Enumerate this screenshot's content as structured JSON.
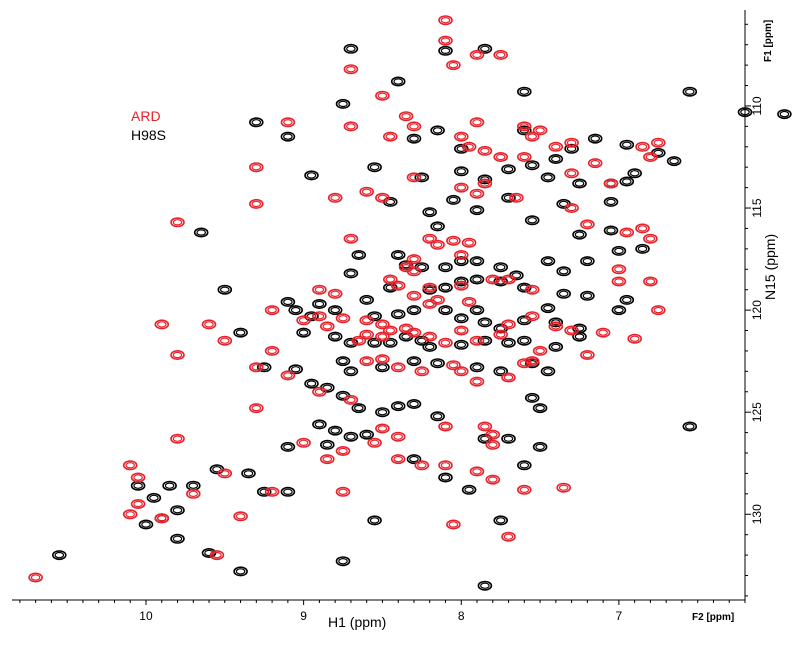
{
  "chart_data": {
    "type": "scatter",
    "subtype": "2D NMR HSQC contour overlay",
    "xlabel": "H1 (ppm)",
    "ylabel": "N15 (ppm)",
    "x_dim_label": "F2 [ppm]",
    "y_dim_label": "F1 [ppm]",
    "xlim": [
      10.85,
      6.2
    ],
    "ylim": [
      105.3,
      134.2
    ],
    "x_ticks": [
      10,
      9,
      8,
      7
    ],
    "y_ticks": [
      110,
      115,
      120,
      125,
      130
    ],
    "grid": false,
    "legend_position": "top-left",
    "series": [
      {
        "name": "ARD",
        "color": "#e8202a",
        "points": [
          [
            8.1,
            105.8
          ],
          [
            8.1,
            106.8
          ],
          [
            7.9,
            107.5
          ],
          [
            7.75,
            107.5
          ],
          [
            8.7,
            108.2
          ],
          [
            8.05,
            108.0
          ],
          [
            8.5,
            109.5
          ],
          [
            8.35,
            110.5
          ],
          [
            8.3,
            111.0
          ],
          [
            9.1,
            110.8
          ],
          [
            8.7,
            111.0
          ],
          [
            8.45,
            111.5
          ],
          [
            7.9,
            110.8
          ],
          [
            8.0,
            111.5
          ],
          [
            7.95,
            112.0
          ],
          [
            7.85,
            112.2
          ],
          [
            7.75,
            112.5
          ],
          [
            7.6,
            112.5
          ],
          [
            7.4,
            112.0
          ],
          [
            7.3,
            111.8
          ],
          [
            7.55,
            111.5
          ],
          [
            7.15,
            112.8
          ],
          [
            6.85,
            112.0
          ],
          [
            6.75,
            111.8
          ],
          [
            6.8,
            112.5
          ],
          [
            7.5,
            111.2
          ],
          [
            7.6,
            111.0
          ],
          [
            7.3,
            113.3
          ],
          [
            7.05,
            113.8
          ],
          [
            9.3,
            113.0
          ],
          [
            8.8,
            114.5
          ],
          [
            8.6,
            114.2
          ],
          [
            8.5,
            114.5
          ],
          [
            8.3,
            113.5
          ],
          [
            8.0,
            114.0
          ],
          [
            7.9,
            114.3
          ],
          [
            7.85,
            113.8
          ],
          [
            7.65,
            114.5
          ],
          [
            9.3,
            114.8
          ],
          [
            7.3,
            115.0
          ],
          [
            9.8,
            115.7
          ],
          [
            7.2,
            115.8
          ],
          [
            6.95,
            116.2
          ],
          [
            6.85,
            116.0
          ],
          [
            6.8,
            116.5
          ],
          [
            8.7,
            116.5
          ],
          [
            8.2,
            116.5
          ],
          [
            8.15,
            116.8
          ],
          [
            7.95,
            116.7
          ],
          [
            8.05,
            116.6
          ],
          [
            8.3,
            117.5
          ],
          [
            8.0,
            117.3
          ],
          [
            8.35,
            117.9
          ],
          [
            8.3,
            118.1
          ],
          [
            8.45,
            118.5
          ],
          [
            8.4,
            118.8
          ],
          [
            8.2,
            118.9
          ],
          [
            8.0,
            118.8
          ],
          [
            8.9,
            119.0
          ],
          [
            8.8,
            119.2
          ],
          [
            8.3,
            119.3
          ],
          [
            8.2,
            119.7
          ],
          [
            8.15,
            119.5
          ],
          [
            7.95,
            119.6
          ],
          [
            7.8,
            118.5
          ],
          [
            7.7,
            118.5
          ],
          [
            7.0,
            118.0
          ],
          [
            7.0,
            118.6
          ],
          [
            6.8,
            118.6
          ],
          [
            7.55,
            119.0
          ],
          [
            9.2,
            120.0
          ],
          [
            8.9,
            120.3
          ],
          [
            9.0,
            120.5
          ],
          [
            8.75,
            120.4
          ],
          [
            8.85,
            120.8
          ],
          [
            8.6,
            120.5
          ],
          [
            8.5,
            120.7
          ],
          [
            8.45,
            121.0
          ],
          [
            8.3,
            121.1
          ],
          [
            8.35,
            120.9
          ],
          [
            8.6,
            121.2
          ],
          [
            8.65,
            121.5
          ],
          [
            8.5,
            121.3
          ],
          [
            8.2,
            121.3
          ],
          [
            8.1,
            121.6
          ],
          [
            8.0,
            121.0
          ],
          [
            7.9,
            121.5
          ],
          [
            7.75,
            121.2
          ],
          [
            7.7,
            120.7
          ],
          [
            7.55,
            120.3
          ],
          [
            7.4,
            120.8
          ],
          [
            7.3,
            121.0
          ],
          [
            7.1,
            121.1
          ],
          [
            6.9,
            121.4
          ],
          [
            6.75,
            120.0
          ],
          [
            9.5,
            121.5
          ],
          [
            9.6,
            120.7
          ],
          [
            9.2,
            122.0
          ],
          [
            9.9,
            120.7
          ],
          [
            9.8,
            122.2
          ],
          [
            9.3,
            122.8
          ],
          [
            9.1,
            123.2
          ],
          [
            8.6,
            122.5
          ],
          [
            8.5,
            122.4
          ],
          [
            8.4,
            122.8
          ],
          [
            8.25,
            123.0
          ],
          [
            8.05,
            122.7
          ],
          [
            8.0,
            123.0
          ],
          [
            7.9,
            123.5
          ],
          [
            7.7,
            123.3
          ],
          [
            7.6,
            122.6
          ],
          [
            7.5,
            122.0
          ],
          [
            7.55,
            122.5
          ],
          [
            7.2,
            122.2
          ],
          [
            8.9,
            124.0
          ],
          [
            8.7,
            124.4
          ],
          [
            9.3,
            124.8
          ],
          [
            8.5,
            125.8
          ],
          [
            8.4,
            126.2
          ],
          [
            8.1,
            125.7
          ],
          [
            7.85,
            125.7
          ],
          [
            7.8,
            126.1
          ],
          [
            7.8,
            126.6
          ],
          [
            8.55,
            126.5
          ],
          [
            8.75,
            126.9
          ],
          [
            8.85,
            127.3
          ],
          [
            9.0,
            126.5
          ],
          [
            9.8,
            126.3
          ],
          [
            8.4,
            127.3
          ],
          [
            8.25,
            127.6
          ],
          [
            8.1,
            127.6
          ],
          [
            7.9,
            127.9
          ],
          [
            7.8,
            128.3
          ],
          [
            9.5,
            128.0
          ],
          [
            10.1,
            127.6
          ],
          [
            10.05,
            128.2
          ],
          [
            10.05,
            129.5
          ],
          [
            10.1,
            130.0
          ],
          [
            9.9,
            130.2
          ],
          [
            9.7,
            129.0
          ],
          [
            9.2,
            128.9
          ],
          [
            8.75,
            128.9
          ],
          [
            7.35,
            128.7
          ],
          [
            7.6,
            128.8
          ],
          [
            9.4,
            130.1
          ],
          [
            9.55,
            132.0
          ],
          [
            8.05,
            130.5
          ],
          [
            7.7,
            131.1
          ],
          [
            10.7,
            133.1
          ]
        ]
      },
      {
        "name": "H98S",
        "color": "#000000",
        "points": [
          [
            8.7,
            107.2
          ],
          [
            8.1,
            107.3
          ],
          [
            7.85,
            107.2
          ],
          [
            8.4,
            108.8
          ],
          [
            7.6,
            109.3
          ],
          [
            8.75,
            109.9
          ],
          [
            6.55,
            109.3
          ],
          [
            6.2,
            110.3
          ],
          [
            5.95,
            110.4
          ],
          [
            9.3,
            110.8
          ],
          [
            9.1,
            111.5
          ],
          [
            8.3,
            111.6
          ],
          [
            8.15,
            111.2
          ],
          [
            8.0,
            112.1
          ],
          [
            7.6,
            111.2
          ],
          [
            7.4,
            112.6
          ],
          [
            7.3,
            112.1
          ],
          [
            7.15,
            111.6
          ],
          [
            6.95,
            111.9
          ],
          [
            6.75,
            112.3
          ],
          [
            6.65,
            112.7
          ],
          [
            6.9,
            113.3
          ],
          [
            6.95,
            113.7
          ],
          [
            7.05,
            113.8
          ],
          [
            8.95,
            113.4
          ],
          [
            8.55,
            113.0
          ],
          [
            8.25,
            113.5
          ],
          [
            8.0,
            113.2
          ],
          [
            7.85,
            113.6
          ],
          [
            7.7,
            113.1
          ],
          [
            7.55,
            112.9
          ],
          [
            7.45,
            113.5
          ],
          [
            7.25,
            113.8
          ],
          [
            8.45,
            114.7
          ],
          [
            8.2,
            115.2
          ],
          [
            8.15,
            115.9
          ],
          [
            8.05,
            114.6
          ],
          [
            7.9,
            115.1
          ],
          [
            7.7,
            114.5
          ],
          [
            7.55,
            115.6
          ],
          [
            7.35,
            114.8
          ],
          [
            7.05,
            114.7
          ],
          [
            7.05,
            116.1
          ],
          [
            7.25,
            116.3
          ],
          [
            9.65,
            116.2
          ],
          [
            8.65,
            117.3
          ],
          [
            8.4,
            117.3
          ],
          [
            8.35,
            117.8
          ],
          [
            8.25,
            117.9
          ],
          [
            8.1,
            117.9
          ],
          [
            8.0,
            117.6
          ],
          [
            7.9,
            117.6
          ],
          [
            7.75,
            117.9
          ],
          [
            7.65,
            118.3
          ],
          [
            7.45,
            117.6
          ],
          [
            7.35,
            118.1
          ],
          [
            7.2,
            117.6
          ],
          [
            7.0,
            117.1
          ],
          [
            6.85,
            117.0
          ],
          [
            7.2,
            119.3
          ],
          [
            7.35,
            119.2
          ],
          [
            7.45,
            119.9
          ],
          [
            7.6,
            118.9
          ],
          [
            7.75,
            118.6
          ],
          [
            7.9,
            118.5
          ],
          [
            8.0,
            118.6
          ],
          [
            8.1,
            118.9
          ],
          [
            8.2,
            119.0
          ],
          [
            8.45,
            118.9
          ],
          [
            8.6,
            119.5
          ],
          [
            8.7,
            118.2
          ],
          [
            9.5,
            119.0
          ],
          [
            9.1,
            119.6
          ],
          [
            8.9,
            119.7
          ],
          [
            8.95,
            120.3
          ],
          [
            9.05,
            120.0
          ],
          [
            8.8,
            120.0
          ],
          [
            8.55,
            120.3
          ],
          [
            8.4,
            120.2
          ],
          [
            8.3,
            120.0
          ],
          [
            8.1,
            120.0
          ],
          [
            8.0,
            120.4
          ],
          [
            7.9,
            120.0
          ],
          [
            7.85,
            120.6
          ],
          [
            7.75,
            120.9
          ],
          [
            7.6,
            120.5
          ],
          [
            7.4,
            120.6
          ],
          [
            7.25,
            120.9
          ],
          [
            7.0,
            120.0
          ],
          [
            6.95,
            119.5
          ],
          [
            9.4,
            121.1
          ],
          [
            9.0,
            121.1
          ],
          [
            8.8,
            121.3
          ],
          [
            8.7,
            121.6
          ],
          [
            8.55,
            121.6
          ],
          [
            8.45,
            121.6
          ],
          [
            8.35,
            121.3
          ],
          [
            8.25,
            121.5
          ],
          [
            8.2,
            121.8
          ],
          [
            8.0,
            121.7
          ],
          [
            7.85,
            121.5
          ],
          [
            7.7,
            121.6
          ],
          [
            7.6,
            121.5
          ],
          [
            7.4,
            121.8
          ],
          [
            7.25,
            121.3
          ],
          [
            9.25,
            122.8
          ],
          [
            9.05,
            122.9
          ],
          [
            8.75,
            122.5
          ],
          [
            8.7,
            123.0
          ],
          [
            8.5,
            122.8
          ],
          [
            8.3,
            122.5
          ],
          [
            8.15,
            122.6
          ],
          [
            7.9,
            122.8
          ],
          [
            7.75,
            123.0
          ],
          [
            7.55,
            122.6
          ],
          [
            7.45,
            123.0
          ],
          [
            8.95,
            123.6
          ],
          [
            8.85,
            123.8
          ],
          [
            8.75,
            124.2
          ],
          [
            8.65,
            124.8
          ],
          [
            8.5,
            125.0
          ],
          [
            8.4,
            124.7
          ],
          [
            8.3,
            124.6
          ],
          [
            8.15,
            125.2
          ],
          [
            7.55,
            124.3
          ],
          [
            7.5,
            124.8
          ],
          [
            6.55,
            125.7
          ],
          [
            8.9,
            125.6
          ],
          [
            8.8,
            125.9
          ],
          [
            8.7,
            126.2
          ],
          [
            8.6,
            126.1
          ],
          [
            8.85,
            126.6
          ],
          [
            7.85,
            126.3
          ],
          [
            7.7,
            126.3
          ],
          [
            7.5,
            126.7
          ],
          [
            9.1,
            126.7
          ],
          [
            8.3,
            127.3
          ],
          [
            7.6,
            127.6
          ],
          [
            8.1,
            128.2
          ],
          [
            7.95,
            128.8
          ],
          [
            9.55,
            127.8
          ],
          [
            9.35,
            128.0
          ],
          [
            9.25,
            128.9
          ],
          [
            9.1,
            128.9
          ],
          [
            9.85,
            128.6
          ],
          [
            9.7,
            128.6
          ],
          [
            10.05,
            128.6
          ],
          [
            9.95,
            129.2
          ],
          [
            9.8,
            129.8
          ],
          [
            9.9,
            130.2
          ],
          [
            10.0,
            130.5
          ],
          [
            8.55,
            130.3
          ],
          [
            7.75,
            130.3
          ],
          [
            9.8,
            131.2
          ],
          [
            9.6,
            131.9
          ],
          [
            9.4,
            132.8
          ],
          [
            8.75,
            132.3
          ],
          [
            7.85,
            133.5
          ],
          [
            10.55,
            132.0
          ]
        ]
      }
    ]
  }
}
